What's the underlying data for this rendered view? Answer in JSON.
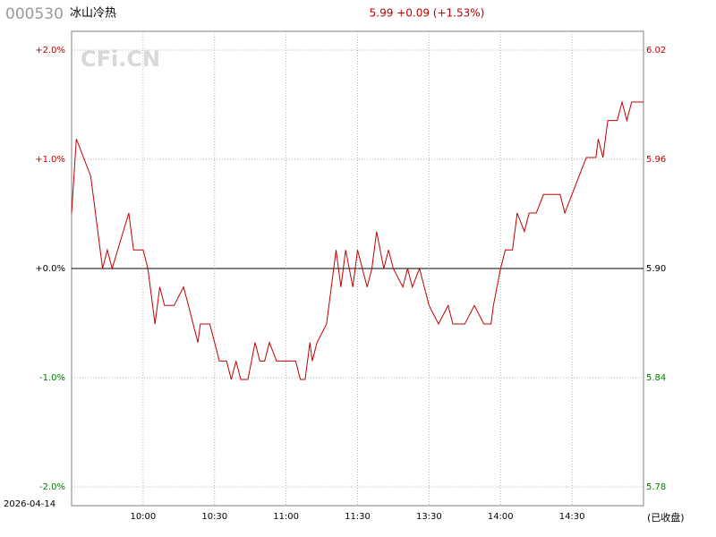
{
  "header": {
    "code": "000530",
    "name": "冰山冷热",
    "quote": "5.99 +0.09 (+1.53%)"
  },
  "watermark": "CFi.CN",
  "footer": {
    "date": "2026-04-14",
    "status": "(已收盘)"
  },
  "chart_data": {
    "type": "line",
    "x": [
      "09:30",
      "09:32",
      "09:38",
      "09:39",
      "09:41",
      "09:43",
      "09:45",
      "09:47",
      "09:54",
      "09:56",
      "10:00",
      "10:02",
      "10:05",
      "10:07",
      "10:09",
      "10:13",
      "10:17",
      "10:19",
      "10:23",
      "10:24",
      "10:28",
      "10:30",
      "10:32",
      "10:35",
      "10:37",
      "10:39",
      "10:41",
      "10:44",
      "10:47",
      "10:49",
      "10:51",
      "10:53",
      "10:56",
      "10:58",
      "11:04",
      "11:06",
      "11:08",
      "11:10",
      "11:11",
      "11:13",
      "11:17",
      "11:21",
      "11:23",
      "11:25",
      "11:28",
      "13:00",
      "13:04",
      "13:06",
      "13:08",
      "13:11",
      "13:13",
      "13:15",
      "13:19",
      "13:21",
      "13:23",
      "13:26",
      "13:30",
      "13:34",
      "13:38",
      "13:40",
      "13:41",
      "13:45",
      "13:49",
      "13:53",
      "13:56",
      "13:57",
      "14:00",
      "14:02",
      "14:05",
      "14:07",
      "14:10",
      "14:12",
      "14:15",
      "14:18",
      "14:25",
      "14:27",
      "14:30",
      "14:33",
      "14:36",
      "14:40",
      "14:41",
      "14:43",
      "14:45",
      "14:49",
      "14:51",
      "14:53",
      "14:55",
      "15:00"
    ],
    "series": [
      {
        "color": "#c00000",
        "axis": "y2",
        "values": [
          5.93,
          5.97,
          5.95,
          5.94,
          5.92,
          5.9,
          5.91,
          5.9,
          5.93,
          5.91,
          5.91,
          5.9,
          5.87,
          5.89,
          5.88,
          5.88,
          5.89,
          5.88,
          5.86,
          5.87,
          5.87,
          5.86,
          5.85,
          5.85,
          5.84,
          5.85,
          5.84,
          5.84,
          5.86,
          5.85,
          5.85,
          5.86,
          5.85,
          5.85,
          5.85,
          5.84,
          5.84,
          5.86,
          5.85,
          5.86,
          5.87,
          5.91,
          5.89,
          5.91,
          5.89,
          5.91,
          5.89,
          5.9,
          5.92,
          5.9,
          5.91,
          5.9,
          5.89,
          5.9,
          5.89,
          5.9,
          5.88,
          5.87,
          5.88,
          5.87,
          5.87,
          5.87,
          5.88,
          5.87,
          5.87,
          5.88,
          5.9,
          5.91,
          5.91,
          5.93,
          5.92,
          5.93,
          5.93,
          5.94,
          5.94,
          5.93,
          5.94,
          5.95,
          5.96,
          5.96,
          5.97,
          5.96,
          5.98,
          5.98,
          5.99,
          5.98,
          5.99,
          5.99
        ]
      }
    ],
    "xticks": [
      "10:00",
      "10:30",
      "11:00",
      "11:30",
      "13:30",
      "14:00",
      "14:30"
    ],
    "ylim": [
      -2.172,
      2.172
    ],
    "yticks": [
      {
        "value": 2,
        "label": "+2.0%"
      },
      {
        "value": 1,
        "label": "+1.0%"
      },
      {
        "value": 0,
        "label": "+0.0%"
      },
      {
        "value": -1,
        "label": "-1.0%"
      },
      {
        "value": -2,
        "label": "-2.0%"
      }
    ],
    "y2lim": [
      5.7718,
      6.0282
    ],
    "y2ticks": [
      {
        "value": 6.018,
        "label": "6.02"
      },
      {
        "value": 5.959,
        "label": "5.96"
      },
      {
        "value": 5.9,
        "label": "5.90"
      },
      {
        "value": 5.841,
        "label": "5.84"
      },
      {
        "value": 5.782,
        "label": "5.78"
      }
    ],
    "grid": true,
    "up_color": "#c00000",
    "down_color": "#008000",
    "flat_color": "#000000"
  }
}
